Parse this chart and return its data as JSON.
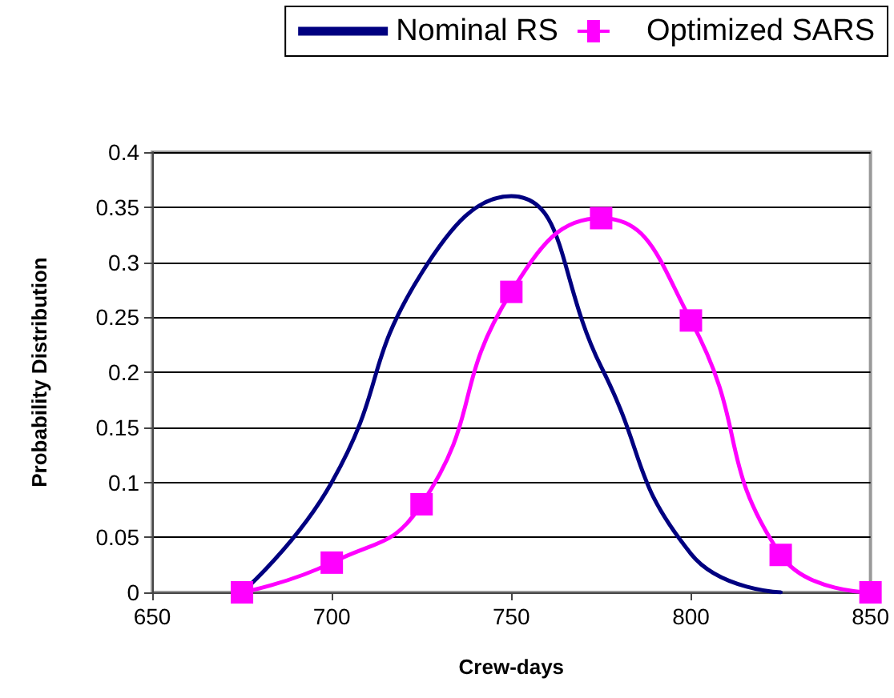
{
  "chart_data": {
    "type": "line",
    "xlabel": "Crew-days",
    "ylabel": "Probability Distribution",
    "xlim": [
      650,
      850
    ],
    "xticks": [
      650,
      700,
      750,
      800,
      850
    ],
    "ylim": [
      0,
      0.4
    ],
    "yticks": [
      0,
      0.05,
      0.1,
      0.15,
      0.2,
      0.25,
      0.3,
      0.35,
      0.4
    ],
    "grid": "y",
    "legend": "top right",
    "series": [
      {
        "name": "Nominal RS",
        "color": "#000080",
        "marker": "none",
        "x": [
          675,
          700,
          725,
          750,
          775,
          800,
          825
        ],
        "values": [
          0,
          0.1,
          0.29,
          0.36,
          0.205,
          0.035,
          0
        ]
      },
      {
        "name": "Optimized SARS",
        "color": "#ff00ff",
        "marker": "square",
        "x": [
          675,
          700,
          725,
          750,
          775,
          800,
          825,
          850
        ],
        "values": [
          0,
          0.027,
          0.08,
          0.273,
          0.34,
          0.247,
          0.034,
          0
        ]
      }
    ]
  }
}
